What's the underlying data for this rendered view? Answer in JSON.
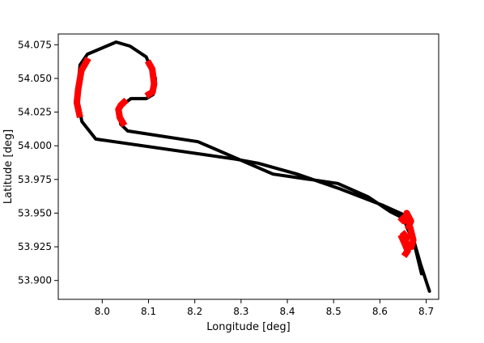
{
  "chart_data": {
    "type": "line",
    "title": "",
    "xlabel": "Longitude [deg]",
    "ylabel": "Latitude [deg]",
    "xlim": [
      7.905,
      8.727
    ],
    "ylim": [
      53.886,
      54.083
    ],
    "grid": false,
    "legend": "none",
    "x_ticks": [
      {
        "value": 8.0,
        "label": "8.0"
      },
      {
        "value": 8.1,
        "label": "8.1"
      },
      {
        "value": 8.2,
        "label": "8.2"
      },
      {
        "value": 8.3,
        "label": "8.3"
      },
      {
        "value": 8.4,
        "label": "8.4"
      },
      {
        "value": 8.5,
        "label": "8.5"
      },
      {
        "value": 8.6,
        "label": "8.6"
      },
      {
        "value": 8.7,
        "label": "8.7"
      }
    ],
    "y_ticks": [
      {
        "value": 53.9,
        "label": "53.900"
      },
      {
        "value": 53.925,
        "label": "53.925"
      },
      {
        "value": 53.95,
        "label": "53.950"
      },
      {
        "value": 53.975,
        "label": "53.975"
      },
      {
        "value": 54.0,
        "label": "54.000"
      },
      {
        "value": 54.025,
        "label": "54.025"
      },
      {
        "value": 54.05,
        "label": "54.050"
      },
      {
        "value": 54.075,
        "label": "54.075"
      }
    ],
    "series": [
      {
        "color": "#000000",
        "points": [
          [
            8.707,
            53.892
          ],
          [
            8.688,
            53.912
          ],
          [
            8.672,
            53.931
          ],
          [
            8.665,
            53.94
          ],
          [
            8.65,
            53.949
          ],
          [
            8.605,
            53.956
          ],
          [
            8.514,
            53.968
          ],
          [
            8.421,
            53.979
          ],
          [
            8.337,
            53.987
          ],
          [
            8.289,
            53.99
          ],
          [
            7.986,
            54.005
          ],
          [
            7.956,
            54.018
          ],
          [
            7.945,
            54.036
          ],
          [
            7.952,
            54.06
          ],
          [
            7.968,
            54.068
          ],
          [
            8.03,
            54.077
          ],
          [
            8.06,
            54.074
          ],
          [
            8.095,
            54.066
          ],
          [
            8.115,
            54.05
          ],
          [
            8.11,
            54.038
          ],
          [
            8.095,
            54.035
          ],
          [
            8.062,
            54.035
          ],
          [
            8.035,
            54.028
          ],
          [
            8.04,
            54.016
          ],
          [
            8.055,
            54.011
          ],
          [
            8.207,
            54.003
          ],
          [
            8.369,
            53.979
          ],
          [
            8.509,
            53.972
          ],
          [
            8.575,
            53.962
          ],
          [
            8.623,
            53.951
          ],
          [
            8.652,
            53.946
          ],
          [
            8.66,
            53.938
          ],
          [
            8.673,
            53.929
          ],
          [
            8.69,
            53.905
          ]
        ]
      },
      {
        "color": "#ff0000",
        "segments": [
          [
            [
              7.97,
              54.065
            ],
            [
              7.955,
              54.056
            ],
            [
              7.948,
              54.042
            ],
            [
              7.945,
              54.032
            ],
            [
              7.952,
              54.021
            ]
          ],
          [
            [
              8.098,
              54.063
            ],
            [
              8.108,
              54.057
            ],
            [
              8.112,
              54.046
            ],
            [
              8.109,
              54.04
            ],
            [
              8.095,
              54.037
            ]
          ],
          [
            [
              8.052,
              54.034
            ],
            [
              8.04,
              54.03
            ],
            [
              8.035,
              54.027
            ],
            [
              8.038,
              54.021
            ],
            [
              8.048,
              54.015
            ]
          ],
          [
            [
              8.643,
              53.947
            ],
            [
              8.652,
              53.944
            ],
            [
              8.658,
              53.95
            ],
            [
              8.667,
              53.944
            ],
            [
              8.66,
              53.938
            ]
          ],
          [
            [
              8.648,
              53.936
            ],
            [
              8.658,
              53.932
            ],
            [
              8.655,
              53.928
            ],
            [
              8.668,
              53.925
            ],
            [
              8.672,
              53.93
            ],
            [
              8.665,
              53.94
            ]
          ],
          [
            [
              8.645,
              53.934
            ],
            [
              8.654,
              53.927
            ],
            [
              8.66,
              53.922
            ],
            [
              8.652,
              53.918
            ]
          ]
        ]
      }
    ]
  }
}
